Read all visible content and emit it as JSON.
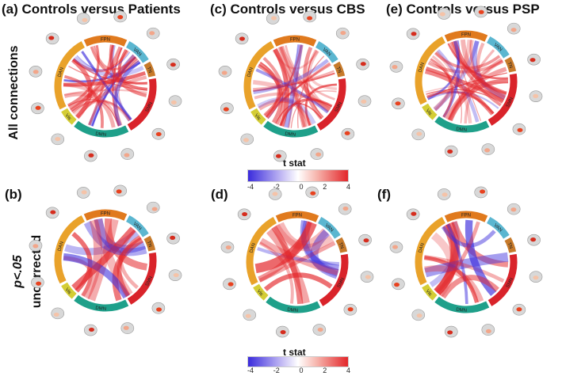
{
  "panels": [
    {
      "label": "(a)",
      "title": "Controls versus Patients",
      "networks": [
        "FPN",
        "VAN",
        "TN",
        "SMN",
        "DMN",
        "Vis",
        "DAN"
      ]
    },
    {
      "label": "(c)",
      "title": "Controls versus CBS",
      "networks": [
        "FPN",
        "VAN",
        "TN",
        "SMN",
        "DMN",
        "Vis",
        "DAN"
      ]
    },
    {
      "label": "(e)",
      "title": "Controls versus PSP",
      "networks": [
        "FPN",
        "VAN",
        "TN",
        "SMN",
        "DMN",
        "Vis",
        "DAN"
      ]
    },
    {
      "label": "(b)",
      "title": "",
      "networks": [
        "FPN",
        "VAN",
        "TN",
        "SMN",
        "DMN",
        "Vis",
        "DAN"
      ]
    },
    {
      "label": "(d)",
      "title": "",
      "networks": [
        "FPN",
        "VAN",
        "TN",
        "SMN",
        "DMN",
        "Vis",
        "DAN"
      ]
    },
    {
      "label": "(f)",
      "title": "",
      "networks": [
        "FPN",
        "VAN",
        "TN",
        "SMN",
        "DMN",
        "Vis",
        "DAN"
      ]
    }
  ],
  "row_labels": {
    "top": "All connections",
    "bottom_line1": "p<.05",
    "bottom_line2": "uncorrected"
  },
  "colorbar": {
    "title": "t stat",
    "ticks": [
      "-4",
      "-2",
      "0",
      "2",
      "4"
    ]
  },
  "colors": {
    "FPN": "#e07a1e",
    "VAN": "#5bb6d0",
    "TN": "#c77a2a",
    "SMN": "#d9232a",
    "DMN": "#1fa08a",
    "Vis": "#d4cd35",
    "DAN": "#e9a22a",
    "neg": "#3a2bdc",
    "pos": "#e3262a"
  }
}
